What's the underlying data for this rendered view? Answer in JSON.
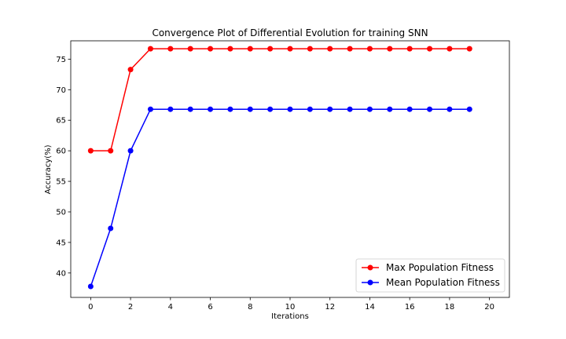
{
  "chart_data": {
    "type": "line",
    "title": "Convergence Plot of Differential Evolution for training SNN",
    "xlabel": "Iterations",
    "ylabel": "Accuracy(%)",
    "xlim": [
      -1,
      21
    ],
    "ylim": [
      36,
      78
    ],
    "xticks": [
      0,
      2,
      4,
      6,
      8,
      10,
      12,
      14,
      16,
      18,
      20
    ],
    "yticks": [
      40,
      45,
      50,
      55,
      60,
      65,
      70,
      75
    ],
    "grid": false,
    "legend_position": "lower-right",
    "x": [
      0,
      1,
      2,
      3,
      4,
      5,
      6,
      7,
      8,
      9,
      10,
      11,
      12,
      13,
      14,
      15,
      16,
      17,
      18,
      19
    ],
    "series": [
      {
        "name": "Max Population Fitness",
        "color": "#ff0000",
        "marker": "circle",
        "values": [
          60.0,
          60.0,
          73.3,
          76.7,
          76.7,
          76.7,
          76.7,
          76.7,
          76.7,
          76.7,
          76.7,
          76.7,
          76.7,
          76.7,
          76.7,
          76.7,
          76.7,
          76.7,
          76.7,
          76.7
        ]
      },
      {
        "name": "Mean Population Fitness",
        "color": "#0000ff",
        "marker": "circle",
        "values": [
          37.8,
          47.3,
          60.0,
          66.8,
          66.8,
          66.8,
          66.8,
          66.8,
          66.8,
          66.8,
          66.8,
          66.8,
          66.8,
          66.8,
          66.8,
          66.8,
          66.8,
          66.8,
          66.8,
          66.8
        ]
      }
    ]
  }
}
